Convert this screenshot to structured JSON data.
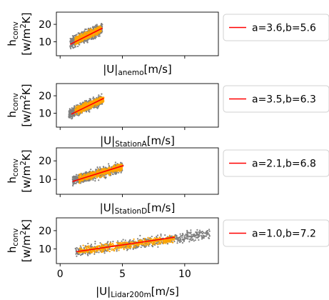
{
  "chart_data": [
    {
      "type": "scatter",
      "ylabel": [
        "h_conv",
        "[w/m^2K]"
      ],
      "ylabel_parts": {
        "line1_main": "h",
        "line1_sub": "conv",
        "line2_pre": "[w/m",
        "line2_sup": "2",
        "line2_post": "K]"
      },
      "xlabel_parts": {
        "pre": "|U|",
        "sub": "anemo",
        "post": "[m/s]"
      },
      "xlim": [
        -0.3,
        12.7
      ],
      "ylim": [
        2,
        27
      ],
      "yticks": [
        10,
        20
      ],
      "xticks": [],
      "legend": {
        "label": "a=3.6,b=5.6",
        "placement": "outside-right"
      },
      "fit": {
        "a": 3.6,
        "b": 5.6,
        "x_range": [
          0.8,
          3.4
        ]
      },
      "cloud_gray": [
        [
          0.8,
          3.4,
          5.0,
          22.0
        ]
      ],
      "cloud_orange": [
        [
          1.2,
          3.3,
          7.0,
          19.0
        ]
      ],
      "colors": {
        "gray": "#808080",
        "orange": "#ffa500",
        "line": "#ff0000"
      }
    },
    {
      "type": "scatter",
      "ylabel_parts": {
        "line1_main": "h",
        "line1_sub": "conv",
        "line2_pre": "[w/m",
        "line2_sup": "2",
        "line2_post": "K]"
      },
      "xlabel_parts": {
        "pre": "|U|",
        "sub": "StationA",
        "post": "[m/s]"
      },
      "xlim": [
        -0.3,
        12.7
      ],
      "ylim": [
        2,
        27
      ],
      "yticks": [
        10,
        20
      ],
      "xticks": [],
      "legend": {
        "label": "a=3.5,b=6.3",
        "placement": "outside-right"
      },
      "fit": {
        "a": 3.5,
        "b": 6.3,
        "x_range": [
          0.9,
          3.5
        ]
      },
      "cloud_gray": [
        [
          0.7,
          3.4,
          5.0,
          21.0
        ]
      ],
      "cloud_orange": [
        [
          1.2,
          3.5,
          8.0,
          19.0
        ]
      ],
      "colors": {
        "gray": "#808080",
        "orange": "#ffa500",
        "line": "#ff0000"
      }
    },
    {
      "type": "scatter",
      "ylabel_parts": {
        "line1_main": "h",
        "line1_sub": "conv",
        "line2_pre": "[w/m",
        "line2_sup": "2",
        "line2_post": "K]"
      },
      "xlabel_parts": {
        "pre": "|U|",
        "sub": "StationD",
        "post": "[m/s]"
      },
      "xlim": [
        -0.3,
        12.7
      ],
      "ylim": [
        2,
        27
      ],
      "yticks": [
        10,
        20
      ],
      "xticks": [],
      "legend": {
        "label": "a=2.1,b=6.8",
        "placement": "outside-right"
      },
      "fit": {
        "a": 2.1,
        "b": 6.8,
        "x_range": [
          1.0,
          5.1
        ]
      },
      "cloud_gray": [
        [
          1.0,
          5.0,
          6.0,
          21.0
        ]
      ],
      "cloud_orange": [
        [
          1.5,
          5.0,
          8.0,
          18.0
        ]
      ],
      "colors": {
        "gray": "#808080",
        "orange": "#ffa500",
        "line": "#ff0000"
      }
    },
    {
      "type": "scatter",
      "ylabel_parts": {
        "line1_main": "h",
        "line1_sub": "conv",
        "line2_pre": "[w/m",
        "line2_sup": "2",
        "line2_post": "K]"
      },
      "xlabel_parts": {
        "pre": "|U|",
        "sub": "Lidar200m",
        "post": "[m/s]"
      },
      "xlim": [
        -0.3,
        12.7
      ],
      "ylim": [
        2,
        27
      ],
      "yticks": [
        10,
        20
      ],
      "xticks": [
        0,
        5,
        10
      ],
      "legend": {
        "label": "a=1.0,b=7.2",
        "placement": "outside-right"
      },
      "fit": {
        "a": 1.0,
        "b": 7.2,
        "x_range": [
          1.3,
          9.2
        ]
      },
      "cloud_gray": [
        [
          1.2,
          12.0,
          6.0,
          21.0
        ]
      ],
      "cloud_orange": [
        [
          1.4,
          9.2,
          8.0,
          19.0
        ]
      ],
      "colors": {
        "gray": "#808080",
        "orange": "#ffa500",
        "line": "#ff0000"
      }
    }
  ]
}
